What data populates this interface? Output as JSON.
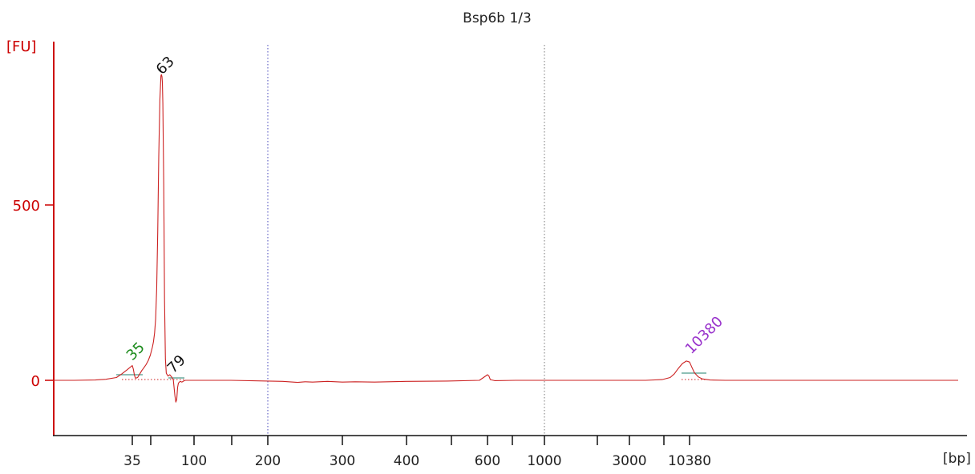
{
  "chart_data": {
    "type": "line",
    "title": "Bsp6b 1/3",
    "ylabel": "[FU]",
    "xlabel": "[bp]",
    "ylim": [
      -160,
      970
    ],
    "y_ticks": [
      0,
      500
    ],
    "x_ticks": [
      "35",
      "100",
      "200",
      "300",
      "400",
      "600",
      "1000",
      "3000",
      "10380"
    ],
    "vertical_markers": [
      {
        "label": "200",
        "color": "#4444bb"
      },
      {
        "label": "1000",
        "color": "#777777"
      }
    ],
    "peak_labels": [
      {
        "text": "35",
        "color": "#1a8a1a"
      },
      {
        "text": "63",
        "color": "#111111"
      },
      {
        "text": "79",
        "color": "#111111"
      },
      {
        "text": "10380",
        "color": "#9933cc"
      }
    ],
    "series": [
      {
        "color": "#cc2222",
        "x": [
          20,
          24,
          28,
          30,
          32,
          33,
          34,
          35,
          36,
          37,
          38,
          40,
          42,
          44,
          46,
          48,
          50,
          52,
          54,
          55,
          56,
          57,
          58,
          59,
          60,
          61,
          62,
          62.5,
          63,
          63.5,
          64,
          65,
          66,
          67,
          68,
          70,
          72,
          74,
          76,
          78,
          79,
          80,
          81,
          82,
          84,
          86,
          88,
          90,
          100,
          120,
          150,
          200,
          220,
          240,
          250,
          260,
          280,
          300,
          320,
          350,
          400,
          500,
          580,
          590,
          600,
          610,
          620,
          650,
          800,
          1000,
          2000,
          3000,
          5000,
          7000,
          8000,
          8500,
          9000,
          9500,
          10000,
          10380,
          10700,
          11000,
          11500,
          12000,
          13000,
          15000,
          20000,
          30000,
          45000
        ],
        "y": [
          0,
          0,
          1,
          3,
          8,
          18,
          30,
          42,
          32,
          15,
          6,
          8,
          18,
          28,
          36,
          45,
          56,
          72,
          95,
          110,
          135,
          175,
          260,
          420,
          640,
          800,
          868,
          872,
          866,
          850,
          790,
          560,
          230,
          60,
          20,
          12,
          16,
          10,
          2,
          -45,
          -62,
          -55,
          -20,
          -8,
          -3,
          -5,
          -2,
          0,
          0,
          0,
          0,
          -2,
          -3,
          -6,
          -4,
          -5,
          -3,
          -5,
          -4,
          -5,
          -3,
          -2,
          0,
          8,
          16,
          12,
          2,
          -1,
          0,
          0,
          0,
          0,
          0,
          2,
          8,
          18,
          34,
          48,
          55,
          52,
          36,
          22,
          10,
          4,
          1,
          0,
          0,
          0,
          0
        ]
      }
    ]
  }
}
